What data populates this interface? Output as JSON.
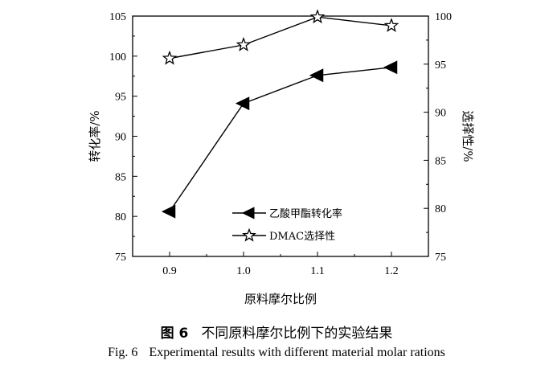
{
  "chart_data": {
    "type": "line",
    "x": [
      0.9,
      1.0,
      1.1,
      1.2
    ],
    "xlabel": "原料摩尔比例",
    "xticks": [
      "0.9",
      "1.0",
      "1.1",
      "1.2"
    ],
    "xlim": [
      0.85,
      1.25
    ],
    "ylabel_left": "转化率/%",
    "ylim_left": [
      75,
      105
    ],
    "yticks_left": [
      "75",
      "80",
      "85",
      "90",
      "95",
      "100",
      "105"
    ],
    "ylabel_right": "选择性/%",
    "ylim_right": [
      75,
      100
    ],
    "yticks_right": [
      "75",
      "80",
      "85",
      "90",
      "95",
      "100"
    ],
    "series": [
      {
        "name": "乙酸甲酯转化率",
        "axis": "left",
        "marker": "triangle-left-filled",
        "values": [
          80.6,
          94.1,
          97.6,
          98.6
        ]
      },
      {
        "name": "DMAC选择性",
        "axis": "right",
        "marker": "star-open",
        "values": [
          95.6,
          97.0,
          99.9,
          99.0
        ]
      }
    ],
    "legend_position": "bottom-center"
  },
  "caption": {
    "cn_fig": "图 6",
    "cn_text": "不同原料摩尔比例下的实验结果",
    "en_fig": "Fig. 6",
    "en_text": "Experimental results with different material molar rations"
  }
}
